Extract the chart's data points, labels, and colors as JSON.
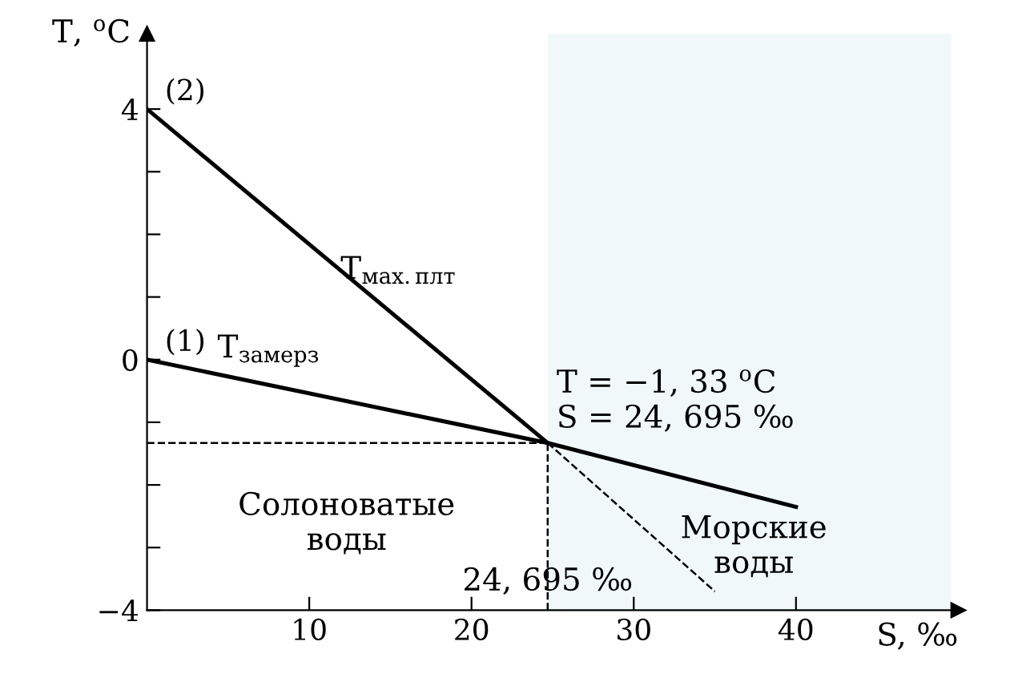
{
  "chart_data": {
    "type": "line",
    "xlabel": "S, ‰",
    "ylabel": "T, $^{o}$C",
    "series": [
      {
        "name": "(1)",
        "color": "#000000",
        "x": [
          0,
          24.695,
          40
        ],
        "values": [
          0,
          -1.33,
          -2.35
        ]
      },
      {
        "name": "(2)",
        "color": "#000000",
        "x": [
          0,
          24.695
        ],
        "values": [
          4,
          -1.33
        ]
      },
      {
        "color": "#000000",
        "x": [
          24.695,
          35
        ],
        "values": [
          -1.33,
          -3.7
        ],
        "line_style": "dashed"
      }
    ],
    "xlim": [
      0,
      50
    ],
    "ylim": [
      -4,
      5.2
    ],
    "xticks": [
      10,
      20,
      30,
      40
    ],
    "yticks": [
      {
        "value": -4,
        "label": "−4"
      },
      {
        "value": -3,
        "label": null
      },
      {
        "value": -2,
        "label": null
      },
      {
        "value": -1,
        "label": null
      },
      0,
      {
        "value": 1,
        "label": null
      },
      {
        "value": 2,
        "label": null
      },
      {
        "value": 3,
        "label": null
      },
      4
    ],
    "ref_lines": [
      {
        "axis": "y",
        "value": -1.33,
        "color": "#000000",
        "line_style": "dashed"
      },
      {
        "axis": "x",
        "value": 24.695,
        "color": "#000000",
        "line_style": "dashed"
      }
    ],
    "bands": [
      {
        "axis": "x",
        "from": 24.695,
        "to": 49.6,
        "color": "#f0f8fa"
      }
    ],
    "annotations": [
      "T$_{мах.плт}$",
      "T$_{замерз}$",
      {
        "text": "T = −1, 33 $^{o}$C\nS = 24, 695 ‰",
        "x": 24.695,
        "y": -1.33
      },
      "Солоноватые\nводы",
      "Морские\nводы",
      {
        "text": "24, 695 ‰",
        "x": 24.695,
        "y": -4
      }
    ],
    "grid": false,
    "legend": false
  }
}
